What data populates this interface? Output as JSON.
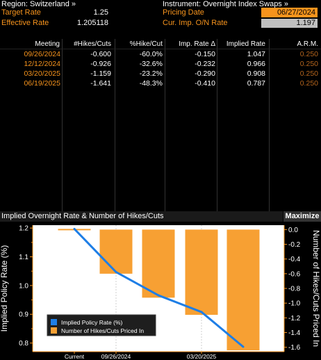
{
  "header": {
    "region_label": "Region: Switzerland »",
    "instrument_label": "Instrument: Overnight Index Swaps »",
    "target_rate_label": "Target Rate",
    "target_rate_value": "1.25",
    "effective_rate_label": "Effective Rate",
    "effective_rate_value": "1.205118",
    "pricing_date_label": "Pricing Date",
    "pricing_date_value": "06/27/2024",
    "cur_imp_label": "Cur. Imp. O/N Rate",
    "cur_imp_value": "1.197"
  },
  "table": {
    "columns": [
      "Meeting",
      "#Hikes/Cuts",
      "%Hike/Cut",
      "Imp. Rate Δ",
      "Implied Rate",
      "A.R.M."
    ],
    "rows": [
      {
        "meeting": "09/26/2024",
        "hikes": "-0.600",
        "pct": "-60.0%",
        "imp_delta": "-0.150",
        "implied": "1.047",
        "arm": "0.250"
      },
      {
        "meeting": "12/12/2024",
        "hikes": "-0.926",
        "pct": "-32.6%",
        "imp_delta": "-0.232",
        "implied": "0.966",
        "arm": "0.250"
      },
      {
        "meeting": "03/20/2025",
        "hikes": "-1.159",
        "pct": "-23.2%",
        "imp_delta": "-0.290",
        "implied": "0.908",
        "arm": "0.250"
      },
      {
        "meeting": "06/19/2025",
        "hikes": "-1.641",
        "pct": "-48.3%",
        "imp_delta": "-0.410",
        "implied": "0.787",
        "arm": "0.250"
      }
    ]
  },
  "chart_panel": {
    "title": "Implied Overnight Rate & Number of Hikes/Cuts",
    "maximize_label": "Maximize"
  },
  "chart_data": {
    "type": "bar",
    "categories": [
      "Current",
      "09/26/2024",
      "12/12/2024",
      "03/20/2025",
      "06/19/2025"
    ],
    "x_tick_labels": [
      "Current",
      "09/26/2024",
      "03/20/2025"
    ],
    "series": [
      {
        "name": "Implied Policy Rate (%)",
        "type": "line",
        "axis": "left",
        "values": [
          1.197,
          1.047,
          0.966,
          0.908,
          0.787
        ]
      },
      {
        "name": "Number of Hikes/Cuts Priced In",
        "type": "bar",
        "axis": "right",
        "values": [
          0,
          -0.6,
          -0.926,
          -1.159,
          -1.641
        ]
      }
    ],
    "ylabel": "Implied Policy Rate (%)",
    "y2label": "Number of Hikes/Cuts Priced In",
    "ylim": [
      0.77,
      1.21
    ],
    "y2lim": [
      -1.66,
      0.06
    ],
    "y_ticks": [
      "1.2",
      "1.1",
      "1.0",
      "0.9",
      "0.8"
    ],
    "y_minor_ticks": [
      "1.15",
      "1.05",
      "0.95",
      "0.85"
    ],
    "y2_ticks": [
      "0.0",
      "-0.2",
      "-0.4",
      "-0.6",
      "-0.8",
      "-1.0",
      "-1.2",
      "-1.4",
      "-1.6"
    ],
    "legend_position": "bottom-left",
    "colors": {
      "line": "#1e7ee6",
      "bar": "#f7a033",
      "axis": "#f7941d",
      "background": "#ffffff"
    }
  }
}
